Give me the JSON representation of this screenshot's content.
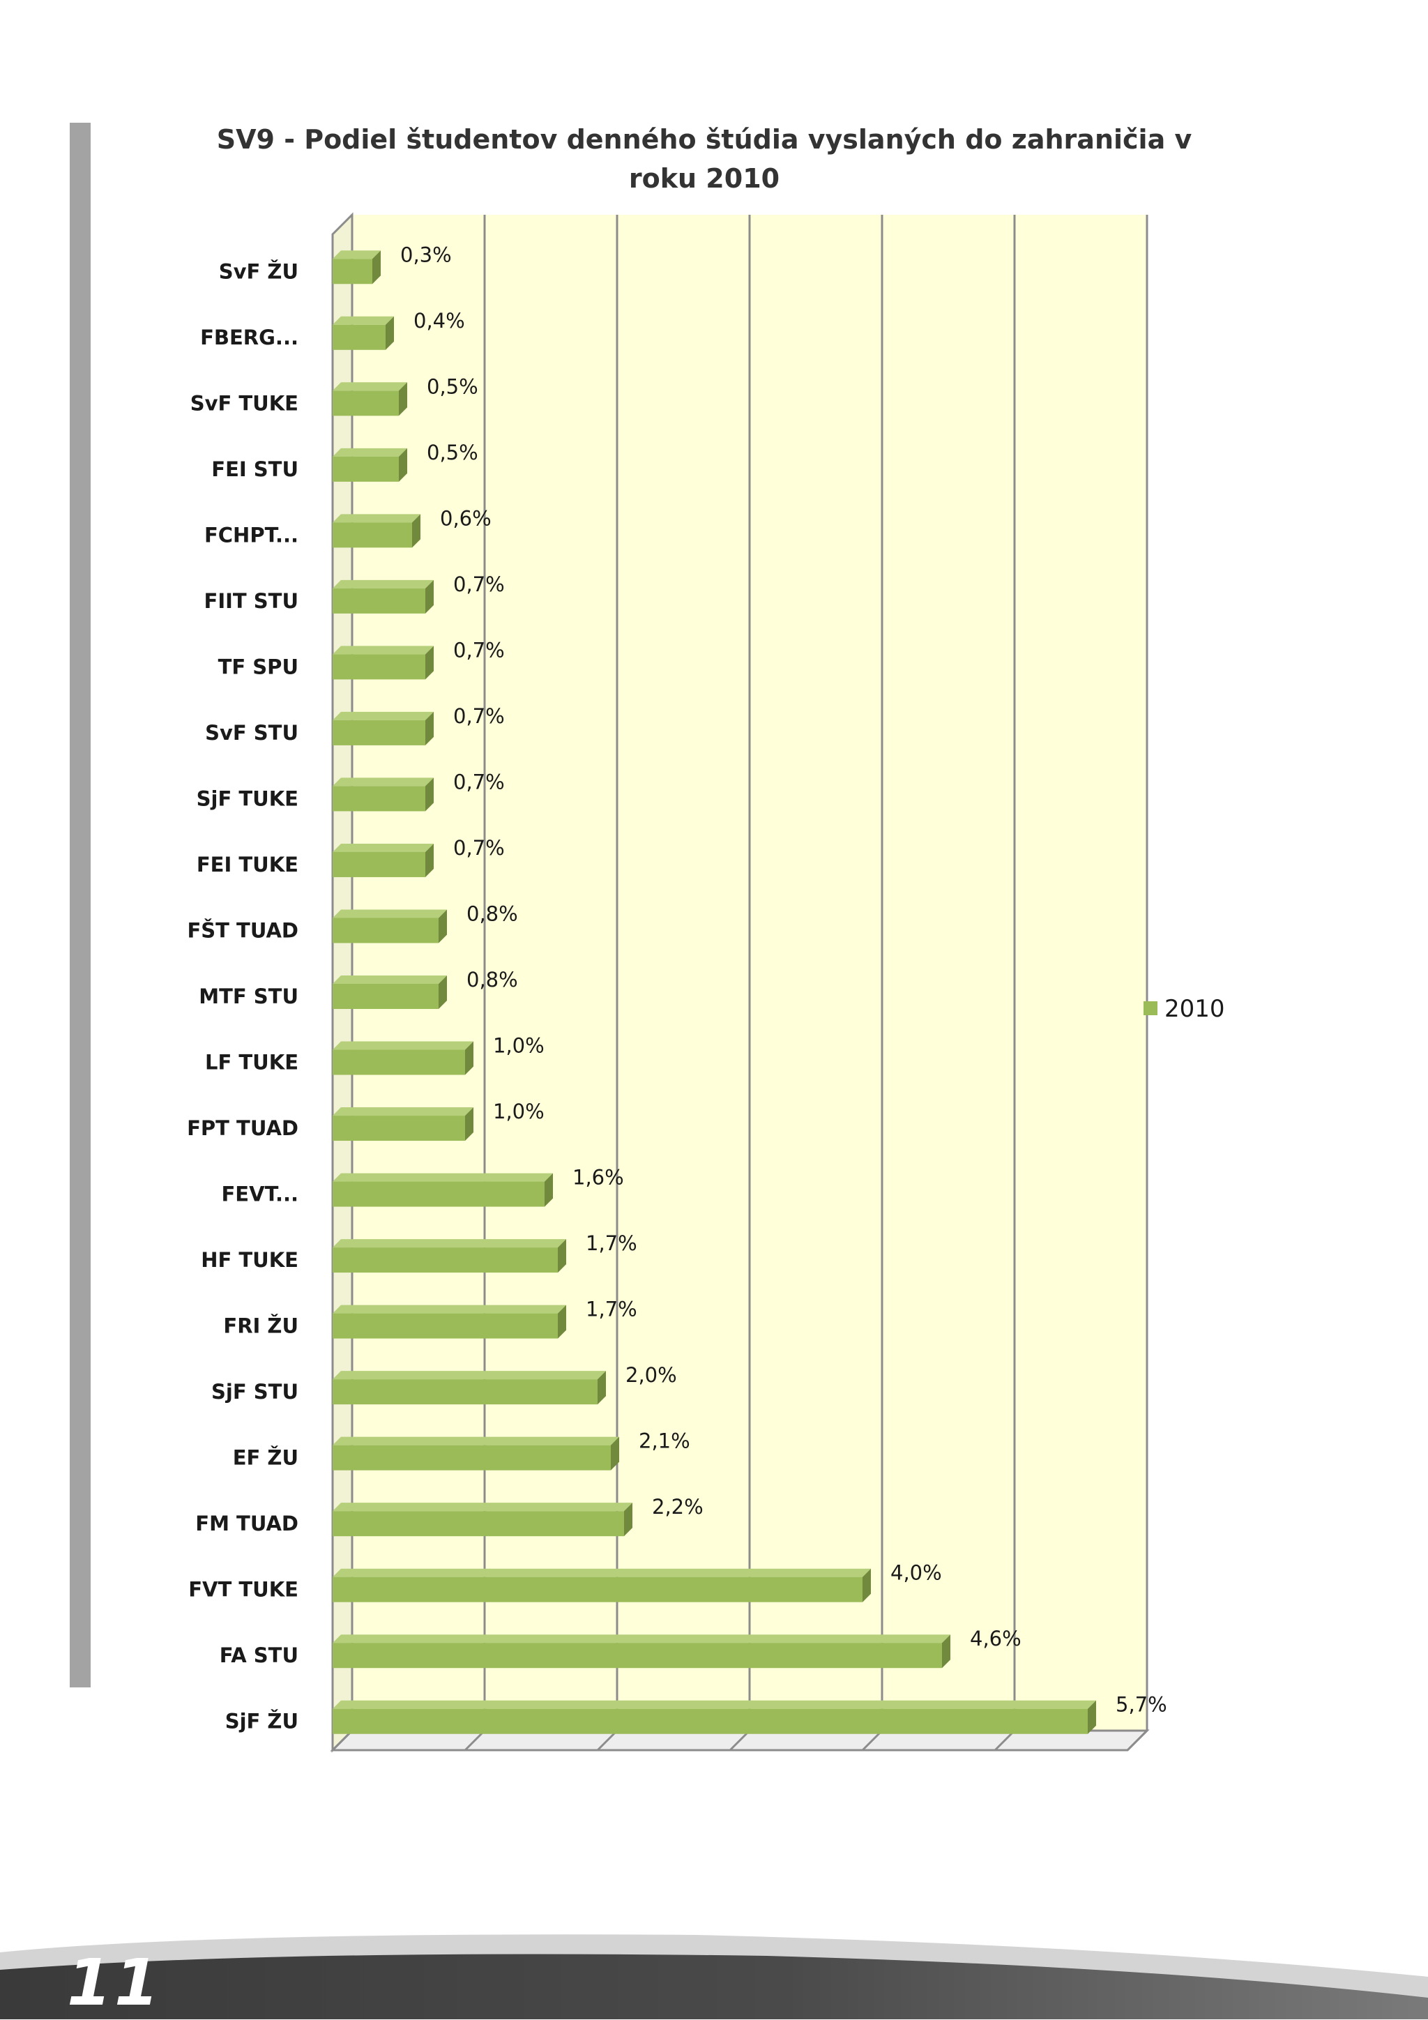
{
  "page": {
    "number": "11"
  },
  "chart_data": {
    "type": "bar",
    "orientation": "horizontal",
    "title": "SV9 - Podiel študentov denného štúdia  vyslaných do zahraničia v roku 2010",
    "categories": [
      "SvF ŽU",
      "FBERG...",
      "SvF TUKE",
      "FEI STU",
      "FCHPT...",
      "FIIT STU",
      "TF SPU",
      "SvF STU",
      "SjF TUKE",
      "FEI TUKE",
      "FŠT TUAD",
      "MTF STU",
      "LF TUKE",
      "FPT TUAD",
      "FEVT...",
      "HF TUKE",
      "FRI ŽU",
      "SjF STU",
      "EF ŽU",
      "FM TUAD",
      "FVT TUKE",
      "FA STU",
      "SjF ŽU"
    ],
    "series": [
      {
        "name": "2010",
        "values": [
          0.3,
          0.4,
          0.5,
          0.5,
          0.6,
          0.7,
          0.7,
          0.7,
          0.7,
          0.7,
          0.8,
          0.8,
          1.0,
          1.0,
          1.6,
          1.7,
          1.7,
          2.0,
          2.1,
          2.2,
          4.0,
          4.6,
          5.7
        ],
        "labels": [
          "0,3%",
          "0,4%",
          "0,5%",
          "0,5%",
          "0,6%",
          "0,7%",
          "0,7%",
          "0,7%",
          "0,7%",
          "0,7%",
          "0,8%",
          "0,8%",
          "1,0%",
          "1,0%",
          "1,6%",
          "1,7%",
          "1,7%",
          "2,0%",
          "2,1%",
          "2,2%",
          "4,0%",
          "4,6%",
          "5,7%"
        ]
      }
    ],
    "xlim": [
      0,
      6
    ],
    "grid": true,
    "legend_position": "right",
    "colors": {
      "bar": "#9bbb59",
      "bar_top": "#b5cf7a",
      "bar_side": "#71893d",
      "plot_bg": "#ffffd9"
    }
  }
}
